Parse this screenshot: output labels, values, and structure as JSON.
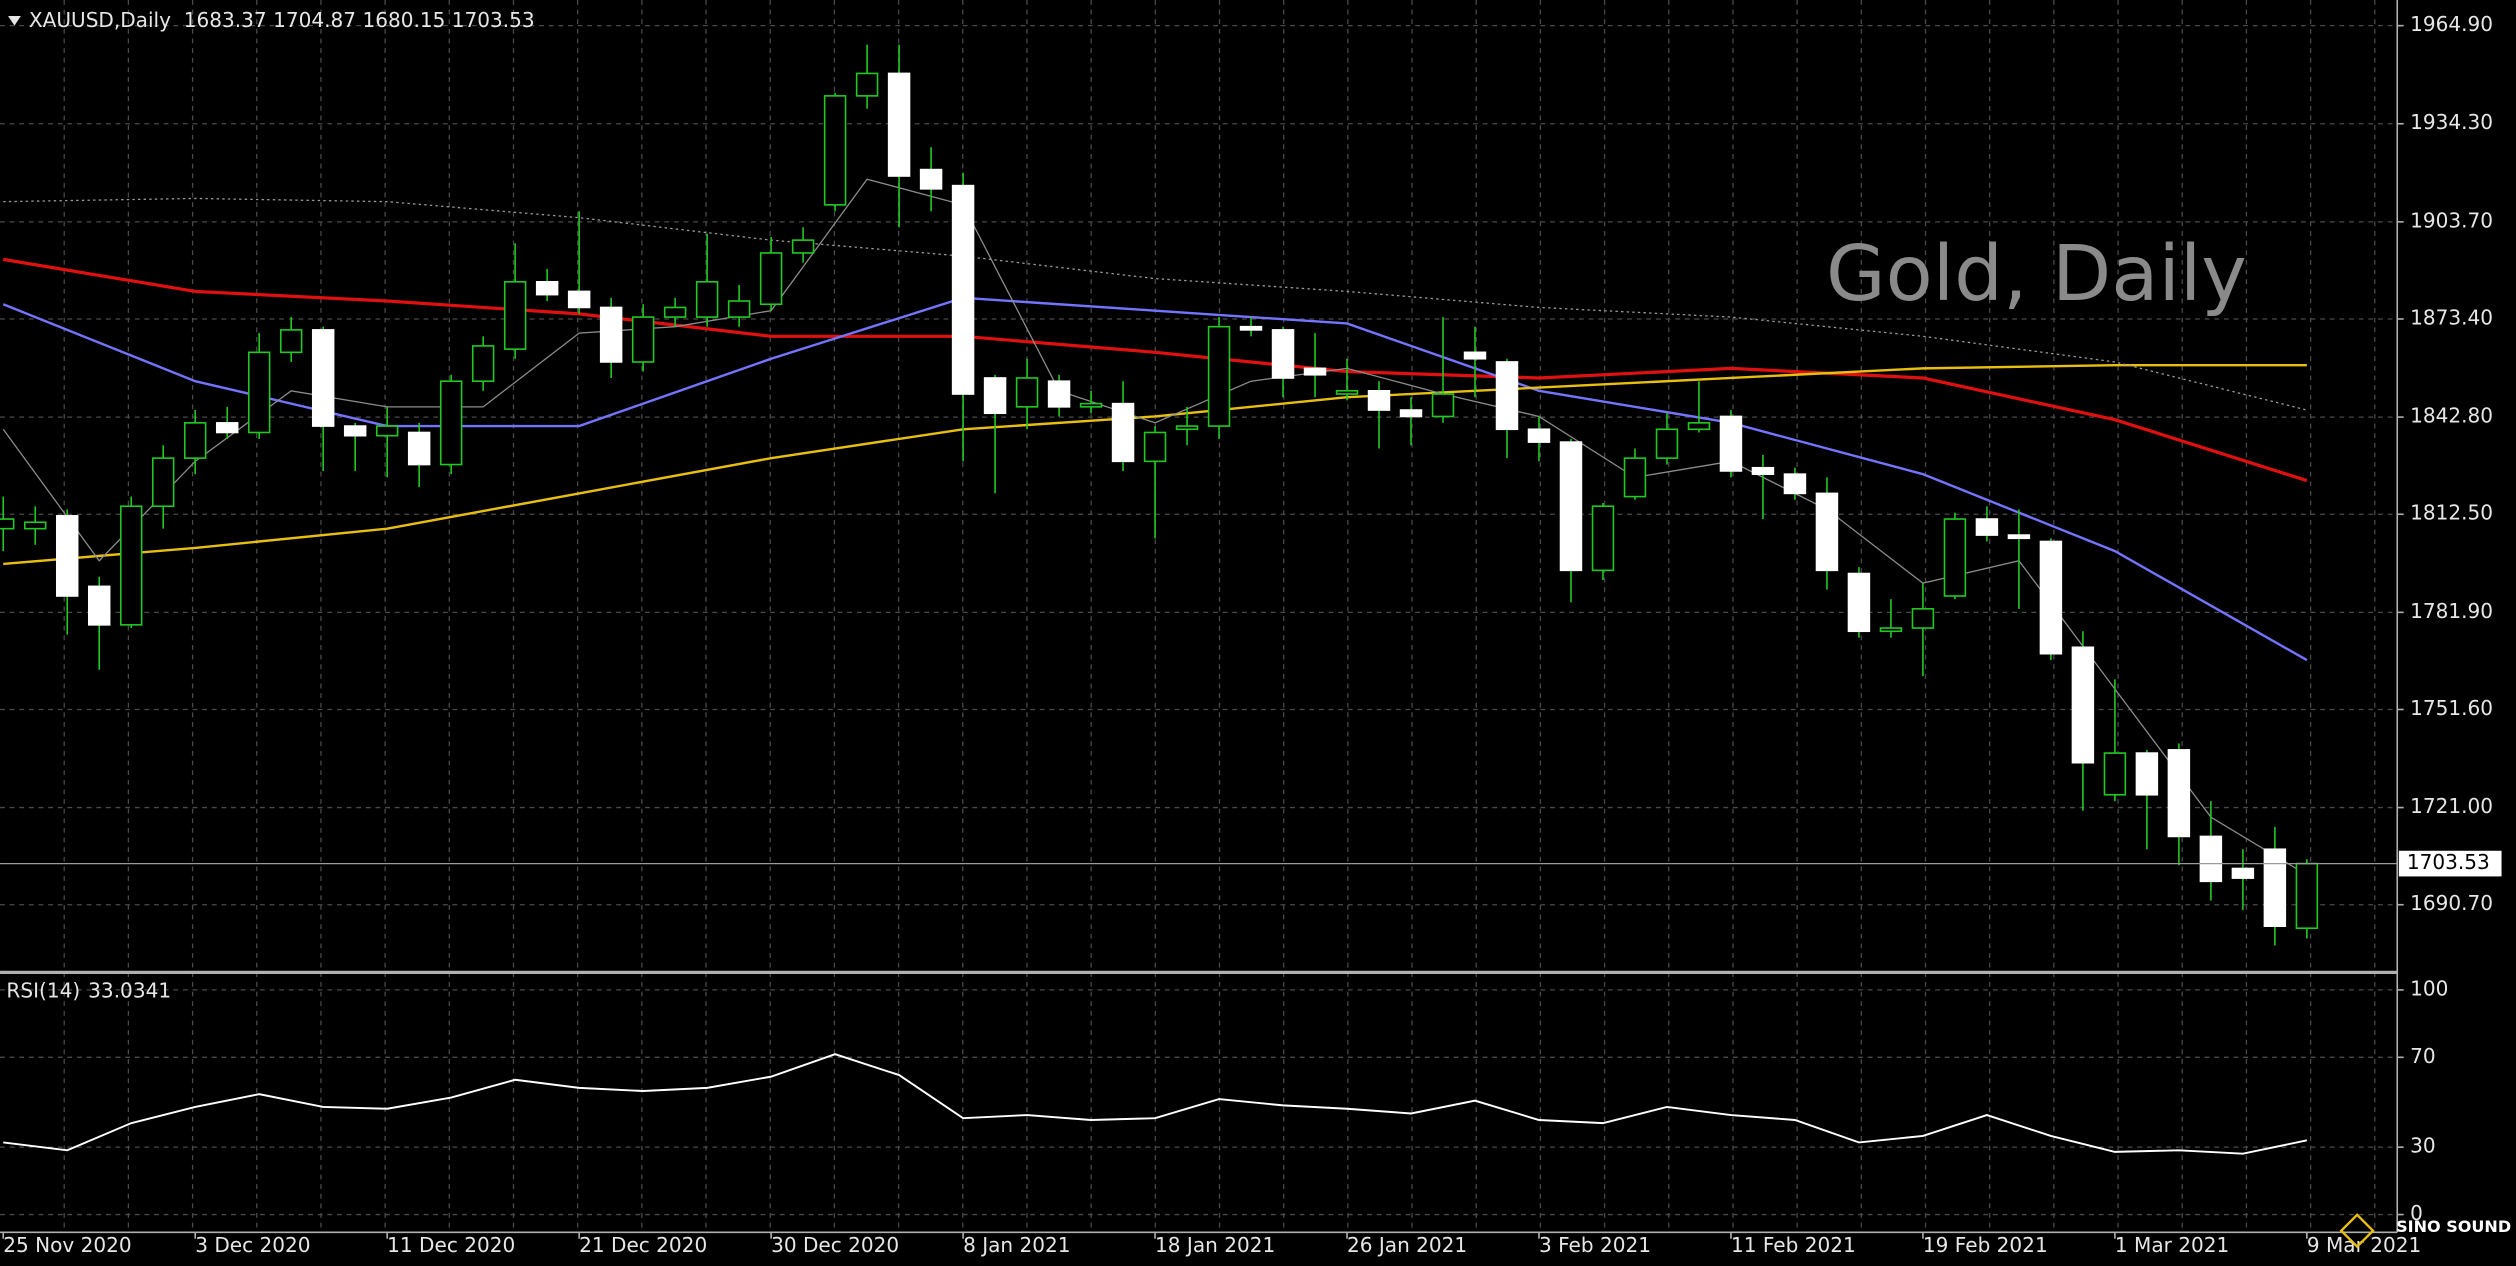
{
  "chart_data": [
    {
      "type": "candlestick",
      "title": "XAUUSD,Daily",
      "annotation": "Gold, Daily",
      "watermark": "SINO SOUND",
      "categories": [
        "25 Nov 2020",
        null,
        null,
        null,
        null,
        null,
        "3 Dec 2020",
        null,
        null,
        null,
        null,
        null,
        "11 Dec 2020",
        null,
        null,
        null,
        null,
        null,
        "21 Dec 2020",
        null,
        null,
        null,
        null,
        null,
        "30 Dec 2020",
        null,
        null,
        null,
        null,
        null,
        "8 Jan 2021",
        null,
        null,
        null,
        null,
        null,
        "18 Jan 2021",
        null,
        null,
        null,
        null,
        null,
        "26 Jan 2021",
        null,
        null,
        null,
        null,
        null,
        "3 Feb 2021",
        null,
        null,
        null,
        null,
        null,
        "11 Feb 2021",
        null,
        null,
        null,
        null,
        null,
        "19 Feb 2021",
        null,
        null,
        null,
        null,
        null,
        "1 Mar 2021",
        null,
        null,
        null,
        null,
        null,
        "9 Mar 2021"
      ],
      "open": [
        1808,
        1808,
        1812,
        1790,
        1778,
        1815,
        1830,
        1841,
        1838,
        1863,
        1870,
        1840,
        1837,
        1838,
        1828,
        1854,
        1864,
        1885,
        1882,
        1877,
        1860,
        1874,
        1874,
        1874,
        1878,
        1894,
        1909,
        1943,
        1950,
        1920,
        1915,
        1855,
        1846,
        1854,
        1846,
        1847,
        1829,
        1839,
        1840,
        1871,
        1870,
        1858,
        1850,
        1851,
        1845,
        1843,
        1863,
        1860,
        1839,
        1835,
        1795,
        1818,
        1830,
        1839,
        1843,
        1827,
        1825,
        1819,
        1794,
        1776,
        1777,
        1787,
        1811,
        1806,
        1804,
        1771,
        1725,
        1738,
        1739,
        1712,
        1702,
        1708,
        1683.37
      ],
      "high": [
        1818,
        1815,
        1814,
        1793,
        1818,
        1834,
        1845,
        1846,
        1869,
        1874,
        1871,
        1841,
        1846,
        1841,
        1856,
        1868,
        1897,
        1889,
        1907,
        1880,
        1878,
        1880,
        1900,
        1884,
        1899,
        1902,
        1944,
        1959,
        1959,
        1927,
        1919,
        1856,
        1861,
        1856,
        1851,
        1854,
        1840,
        1846,
        1874,
        1874,
        1871,
        1869,
        1861,
        1854,
        1849,
        1874,
        1871,
        1861,
        1843,
        1836,
        1816,
        1833,
        1844,
        1854,
        1845,
        1831,
        1827,
        1824,
        1796,
        1786,
        1791,
        1813,
        1815,
        1814,
        1805,
        1776,
        1761,
        1739,
        1741,
        1723,
        1708,
        1715,
        1704.87
      ],
      "low": [
        1801,
        1803,
        1775,
        1764,
        1777,
        1808,
        1825,
        1836,
        1836,
        1860,
        1826,
        1826,
        1824,
        1821,
        1825,
        1851,
        1861,
        1879,
        1875,
        1855,
        1857,
        1871,
        1871,
        1871,
        1876,
        1891,
        1907,
        1939,
        1902,
        1907,
        1829,
        1819,
        1839,
        1843,
        1844,
        1826,
        1805,
        1834,
        1836,
        1868,
        1849,
        1849,
        1848,
        1833,
        1834,
        1841,
        1849,
        1830,
        1829,
        1785,
        1792,
        1817,
        1828,
        1838,
        1824,
        1811,
        1817,
        1789,
        1774,
        1774,
        1762,
        1786,
        1804,
        1783,
        1767,
        1720,
        1723,
        1708,
        1703,
        1692,
        1689,
        1678,
        1680.15
      ],
      "close": [
        1811,
        1810,
        1787,
        1778,
        1815,
        1830,
        1841,
        1838,
        1863,
        1870,
        1840,
        1837,
        1840,
        1828,
        1854,
        1865,
        1885,
        1881,
        1877,
        1860,
        1874,
        1877,
        1885,
        1879,
        1894,
        1898,
        1943,
        1950,
        1918,
        1914,
        1850,
        1844,
        1855,
        1846,
        1847,
        1829,
        1838,
        1840,
        1871,
        1870,
        1855,
        1856,
        1851,
        1845,
        1843,
        1850,
        1861,
        1839,
        1835,
        1795,
        1815,
        1830,
        1839,
        1841,
        1826,
        1825,
        1819,
        1795,
        1776,
        1777,
        1783,
        1811,
        1806,
        1805,
        1769,
        1735,
        1738,
        1725,
        1712,
        1698,
        1699,
        1684,
        1703.53
      ],
      "up_color": "#22c822",
      "down_color": "#ffffff",
      "series": [
        {
          "color": "#e01010",
          "width": 2,
          "x": [
            0,
            6,
            12,
            18,
            24,
            30,
            36,
            42,
            48,
            54,
            60,
            66,
            72
          ],
          "values": [
            1892,
            1882,
            1879,
            1875,
            1868,
            1868,
            1863,
            1857,
            1855,
            1858,
            1855,
            1842,
            1823
          ]
        },
        {
          "color": "#7474ff",
          "width": 1.5,
          "x": [
            0,
            6,
            12,
            18,
            24,
            30,
            36,
            42,
            48,
            54,
            60,
            66,
            72
          ],
          "values": [
            1878,
            1854,
            1840,
            1840,
            1861,
            1880,
            1876,
            1872,
            1851,
            1841,
            1825,
            1801,
            1767
          ]
        },
        {
          "color": "#e8be10",
          "width": 1.5,
          "x": [
            0,
            6,
            12,
            18,
            24,
            30,
            36,
            42,
            48,
            54,
            60,
            66,
            72
          ],
          "values": [
            1797,
            1802,
            1808,
            1819,
            1830,
            1839,
            1843,
            1849,
            1852,
            1855,
            1858,
            1859,
            1859
          ]
        },
        {
          "color": "#9a9a9a",
          "width": 0.8,
          "line_style": "dotted",
          "x": [
            0,
            6,
            12,
            18,
            24,
            30,
            36,
            42,
            48,
            54,
            60,
            66,
            72
          ],
          "values": [
            1910,
            1911,
            1910,
            1905,
            1898,
            1893,
            1886,
            1882,
            1877,
            1874,
            1868,
            1860,
            1845
          ]
        },
        {
          "color": "#8c8c8c",
          "width": 0.8,
          "x": [
            0,
            3,
            6,
            9,
            12,
            15,
            18,
            21,
            24,
            27,
            30,
            33,
            36,
            39,
            42,
            45,
            48,
            51,
            54,
            57,
            60,
            63,
            66,
            69,
            72
          ],
          "values": [
            1839,
            1798,
            1829,
            1851,
            1846,
            1846,
            1869,
            1871,
            1876,
            1917,
            1909,
            1851,
            1841,
            1854,
            1858,
            1850,
            1843,
            1824,
            1829,
            1814,
            1791,
            1798,
            1758,
            1718,
            1700
          ]
        }
      ],
      "ylim": [
        1670.1,
        1972.9
      ],
      "yticks": [
        {
          "value": 1690.7,
          "label": "1690.70"
        },
        {
          "value": 1721,
          "label": "1721.00"
        },
        {
          "value": 1751.6,
          "label": "1751.60"
        },
        {
          "value": 1781.9,
          "label": "1781.90"
        },
        {
          "value": 1812.5,
          "label": "1812.50"
        },
        {
          "value": 1842.8,
          "label": "1842.80"
        },
        {
          "value": 1873.4,
          "label": "1873.40"
        },
        {
          "value": 1903.7,
          "label": "1903.70"
        },
        {
          "value": 1934.3,
          "label": "1934.30"
        },
        {
          "value": 1964.9,
          "label": "1964.90"
        }
      ],
      "grid": true
    },
    {
      "type": "line",
      "title": "RSI(14)",
      "color": "#ffffff",
      "x": [
        0,
        2,
        4,
        6,
        8,
        10,
        12,
        14,
        16,
        18,
        20,
        22,
        24,
        26,
        28,
        30,
        32,
        34,
        36,
        38,
        40,
        42,
        44,
        46,
        48,
        50,
        52,
        54,
        56,
        58,
        60,
        62,
        64,
        66,
        68,
        70,
        72
      ],
      "values": [
        32.1,
        28.6,
        40.7,
        47.9,
        53.6,
        47.9,
        47.1,
        52.1,
        60,
        56.4,
        55,
        56.4,
        61.4,
        71.4,
        62.1,
        42.9,
        44.3,
        42.1,
        42.9,
        51.4,
        48.6,
        47.1,
        45,
        50.7,
        42.1,
        40.7,
        47.9,
        44.3,
        42.1,
        32.1,
        35,
        44.3,
        35,
        27.9,
        28.6,
        27.1,
        33.0341
      ],
      "ylim": [
        -7.9,
        107.1
      ],
      "yticks": [
        0,
        30,
        70,
        100
      ],
      "grid": true
    }
  ]
}
